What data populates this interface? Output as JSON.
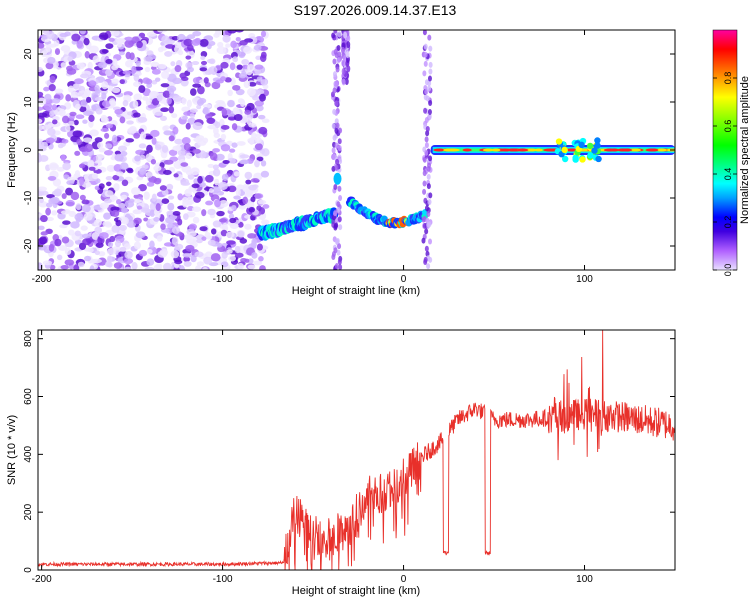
{
  "title": "S197.2026.009.14.37.E13",
  "chart_data": [
    {
      "type": "heatmap",
      "xlabel": "Height of straight line (km)",
      "ylabel": "Frequency (Hz)",
      "xlim": [
        -202,
        150
      ],
      "ylim": [
        -25,
        25
      ],
      "xticks": [
        -200,
        -100,
        0,
        100
      ],
      "yticks": [
        -20,
        -10,
        0,
        10,
        20
      ],
      "colorbar": {
        "label": "Normalized spectral amplitude",
        "range": [
          0,
          1
        ],
        "ticks": [
          0.0,
          0.2,
          0.4,
          0.6,
          0.8
        ],
        "colors": [
          "#e8e0ff",
          "#b060ff",
          "#4000e0",
          "#0000ff",
          "#00a0ff",
          "#00ffff",
          "#00ff80",
          "#00ff00",
          "#80ff00",
          "#ffff00",
          "#ff8000",
          "#ff0000",
          "#ff00a0"
        ]
      },
      "features": [
        {
          "name": "noise region",
          "x_range": [
            -202,
            -76
          ],
          "freq_range": [
            -25,
            25
          ]
        },
        {
          "name": "low band",
          "x_range": [
            -79,
            -38
          ],
          "freq_start": -17.5,
          "freq_end": -13.5
        },
        {
          "name": "vertical streak",
          "x": -37,
          "freq_range": [
            -25,
            25
          ]
        },
        {
          "name": "mid band",
          "x_range": [
            -30,
            12
          ],
          "freq_start": -10.5,
          "freq_end": -13.5
        },
        {
          "name": "zero band",
          "x_range": [
            15,
            150
          ],
          "freq": 0
        }
      ]
    },
    {
      "type": "line",
      "xlabel": "Height of straight line (km)",
      "ylabel": "SNR (10 * v/v)",
      "xlim": [
        -202,
        150
      ],
      "ylim": [
        0,
        830
      ],
      "xticks": [
        -200,
        -100,
        0,
        100
      ],
      "yticks": [
        0,
        200,
        400,
        600,
        800
      ],
      "color": "#e8302a",
      "profile": [
        {
          "x": -202,
          "y": 20
        },
        {
          "x": -100,
          "y": 20
        },
        {
          "x": -66,
          "y": 25
        },
        {
          "x": -60,
          "y": 200
        },
        {
          "x": -45,
          "y": 100
        },
        {
          "x": -30,
          "y": 150
        },
        {
          "x": -20,
          "y": 260
        },
        {
          "x": -10,
          "y": 270
        },
        {
          "x": 0,
          "y": 320
        },
        {
          "x": 10,
          "y": 390
        },
        {
          "x": 20,
          "y": 440
        },
        {
          "x": 30,
          "y": 520
        },
        {
          "x": 40,
          "y": 560
        },
        {
          "x": 50,
          "y": 520
        },
        {
          "x": 70,
          "y": 520
        },
        {
          "x": 100,
          "y": 540
        },
        {
          "x": 120,
          "y": 530
        },
        {
          "x": 150,
          "y": 500
        }
      ],
      "dips": [
        {
          "x_range": [
            22,
            25
          ],
          "y": 60
        },
        {
          "x_range": [
            45,
            48
          ],
          "y": 60
        }
      ],
      "peak": {
        "x": 110,
        "y": 830
      }
    }
  ]
}
